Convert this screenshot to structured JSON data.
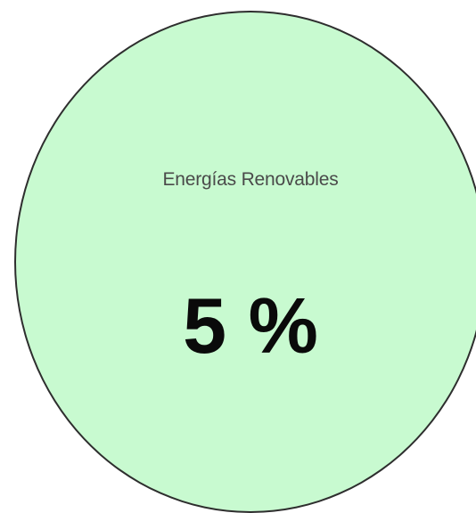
{
  "indicator": {
    "label": "Energías Renovables",
    "value": "5 %",
    "fill_color": "#c8fad0",
    "border_color": "#2e2e2e"
  }
}
